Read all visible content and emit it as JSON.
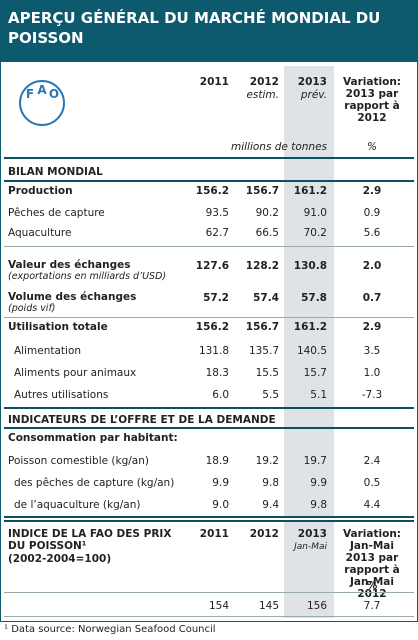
{
  "header": {
    "title": "APERÇU GÉNÉRAL DU MARCHÉ MONDIAL DU POISSON"
  },
  "logo": {
    "letters": [
      "F",
      "A",
      "O"
    ]
  },
  "columns": [
    {
      "label": "2011"
    },
    {
      "label": "2012",
      "sub": "estim."
    },
    {
      "label": "2013",
      "sub": "prév."
    },
    {
      "label": "Variation: 2013 par rapport à 2012"
    }
  ],
  "units": [
    "millions de tonnes",
    "%"
  ],
  "sections": [
    {
      "title": "BILAN MONDIAL",
      "rows": [
        {
          "label": "Production",
          "style": "bold",
          "values": [
            "156.2",
            "156.7",
            "161.2",
            "2.9"
          ]
        },
        {
          "label": "Pêches de capture",
          "style": "normal",
          "values": [
            "93.5",
            "90.2",
            "91.0",
            "0.9"
          ]
        },
        {
          "label": "Aquaculture",
          "style": "normal",
          "values": [
            "62.7",
            "66.5",
            "70.2",
            "5.6"
          ]
        },
        {
          "label": "Valeur des échanges",
          "sub": "(exportations en milliards d’USD)",
          "style": "bold",
          "values": [
            "127.6",
            "128.2",
            "130.8",
            "2.0"
          ]
        },
        {
          "label": "Volume des échanges",
          "sub": "(poids vif)",
          "style": "bold",
          "values": [
            "57.2",
            "57.4",
            "57.8",
            "0.7"
          ]
        },
        {
          "label": "Utilisation totale",
          "style": "bold",
          "values": [
            "156.2",
            "156.7",
            "161.2",
            "2.9"
          ]
        },
        {
          "label": "Alimentation",
          "style": "indent",
          "values": [
            "131.8",
            "135.7",
            "140.5",
            "3.5"
          ]
        },
        {
          "label": "Aliments pour animaux",
          "style": "indent",
          "values": [
            "18.3",
            "15.5",
            "15.7",
            "1.0"
          ]
        },
        {
          "label": "Autres utilisations",
          "style": "indent",
          "values": [
            "6.0",
            "5.5",
            "5.1",
            "-7.3"
          ]
        }
      ]
    },
    {
      "title": "INDICATEURS DE L’OFFRE ET DE LA DEMANDE",
      "rows": [
        {
          "label": "Consommation par habitant:",
          "style": "bold",
          "values": []
        },
        {
          "label": "Poisson comestible (kg/an)",
          "style": "normal",
          "values": [
            "18.9",
            "19.2",
            "19.7",
            "2.4"
          ]
        },
        {
          "label": "des pêches de capture (kg/an)",
          "style": "indent",
          "values": [
            "9.9",
            "9.8",
            "9.9",
            "0.5"
          ]
        },
        {
          "label": "de l’aquaculture (kg/an)",
          "style": "indent",
          "values": [
            "9.0",
            "9.4",
            "9.8",
            "4.4"
          ]
        }
      ]
    }
  ],
  "index": {
    "title": "INDICE DE LA FAO DES PRIX DU POISSON¹",
    "sub": "(2002-2004=100)",
    "columns": [
      "2011",
      "2012",
      "2013",
      "Variation: Jan-Mai 2013 par rapport à Jan-Mai 2012"
    ],
    "column_sub": "Jan-Mai",
    "unit": "%",
    "values": [
      "154",
      "145",
      "156",
      "7.7"
    ]
  },
  "footnote": "¹ Data source: Norwegian Seafood Council"
}
